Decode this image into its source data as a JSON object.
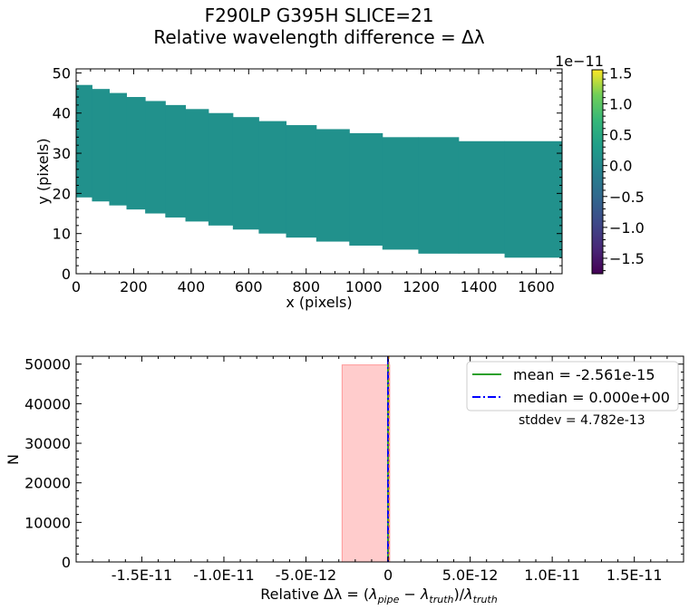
{
  "figure": {
    "title_line1": "F290LP   G395H   SLICE=21",
    "title_line2": "Relative wavelength difference = Δλ"
  },
  "chart_data": [
    {
      "type": "heatmap",
      "xlabel": "x (pixels)",
      "ylabel": "y (pixels)",
      "xlim": [
        0,
        1690
      ],
      "ylim": [
        0,
        51
      ],
      "xticks": [
        0,
        200,
        400,
        600,
        800,
        1000,
        1200,
        1400,
        1600
      ],
      "yticks": [
        0,
        10,
        20,
        30,
        40,
        50
      ],
      "fill_color": "#21918c",
      "colorbar": {
        "range": [
          -1.75,
          1.55
        ],
        "ticks": [
          1.5,
          1.0,
          0.5,
          0.0,
          -0.5,
          -1.0,
          -1.5
        ],
        "tick_labels": [
          "1.5",
          "1.0",
          "0.5",
          "0.0",
          "−0.5",
          "−1.0",
          "−1.5"
        ],
        "offset_label": "1e−11",
        "colormap": "viridis"
      },
      "trace_steps": [
        {
          "x": [
            0,
            55
          ],
          "y": [
            19,
            47
          ]
        },
        {
          "x": [
            55,
            115
          ],
          "y": [
            18,
            46
          ]
        },
        {
          "x": [
            115,
            175
          ],
          "y": [
            17,
            45
          ]
        },
        {
          "x": [
            175,
            240
          ],
          "y": [
            16,
            44
          ]
        },
        {
          "x": [
            240,
            310
          ],
          "y": [
            15,
            43
          ]
        },
        {
          "x": [
            310,
            380
          ],
          "y": [
            14,
            42
          ]
        },
        {
          "x": [
            380,
            460
          ],
          "y": [
            13,
            41
          ]
        },
        {
          "x": [
            460,
            545
          ],
          "y": [
            12,
            40
          ]
        },
        {
          "x": [
            545,
            635
          ],
          "y": [
            11,
            39
          ]
        },
        {
          "x": [
            635,
            730
          ],
          "y": [
            10,
            38
          ]
        },
        {
          "x": [
            730,
            835
          ],
          "y": [
            9,
            37
          ]
        },
        {
          "x": [
            835,
            950
          ],
          "y": [
            8,
            36
          ]
        },
        {
          "x": [
            950,
            1065
          ],
          "y": [
            7,
            35
          ]
        },
        {
          "x": [
            1065,
            1190
          ],
          "y": [
            6,
            34
          ]
        },
        {
          "x": [
            1190,
            1330
          ],
          "y": [
            5,
            34
          ]
        },
        {
          "x": [
            1330,
            1490
          ],
          "y": [
            5,
            33
          ]
        },
        {
          "x": [
            1490,
            1690
          ],
          "y": [
            4,
            33
          ]
        }
      ]
    },
    {
      "type": "bar",
      "subtype": "histogram",
      "xlabel_prefix": "Relative Δλ = (",
      "xlabel_lambda": "λ",
      "xlabel_sub_pipe": "pipe",
      "xlabel_minus": " − ",
      "xlabel_sub_truth": "truth",
      "xlabel_mid": ")/",
      "ylabel": "N",
      "xlim": [
        -1.9e-11,
        1.8e-11
      ],
      "ylim": [
        0,
        52000
      ],
      "xticks": [
        -1.5e-11,
        -1e-11,
        -5e-12,
        0,
        5e-12,
        1e-11,
        1.5e-11
      ],
      "xtick_labels": [
        "-1.5E-11",
        "-1.0E-11",
        "-5.0E-12",
        "0",
        "5.0E-12",
        "1.0E-11",
        "1.5E-11"
      ],
      "yticks": [
        0,
        10000,
        20000,
        30000,
        40000,
        50000
      ],
      "ytick_labels": [
        "0",
        "10000",
        "20000",
        "30000",
        "40000",
        "50000"
      ],
      "bins": [
        {
          "x0": -2.8e-12,
          "x1": 1e-13,
          "count": 49800
        }
      ],
      "bar_color": "#ffcccc",
      "bar_edge": "#ff9999",
      "lines": [
        {
          "name": "mean",
          "x": -2.561e-15,
          "color": "#2ca02c",
          "style": "solid"
        },
        {
          "name": "median",
          "x": 0.0,
          "color": "#0000ff",
          "style": "dashdot"
        }
      ],
      "legend": {
        "position": "top-right",
        "mean_label": "mean = -2.561e-15",
        "median_label": "median = 0.000e+00"
      },
      "annotation": "stddev = 4.782e-13"
    }
  ]
}
